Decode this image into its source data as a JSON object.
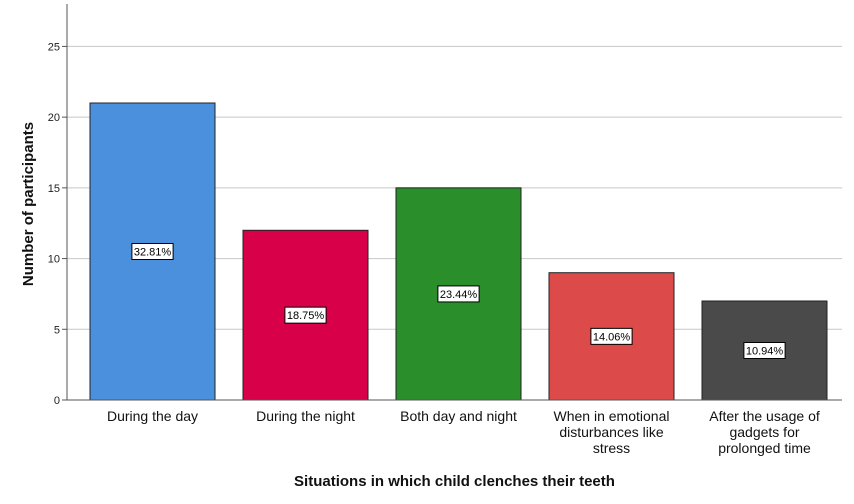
{
  "chart_data": {
    "type": "bar",
    "categories": [
      [
        "During the day"
      ],
      [
        "During the night"
      ],
      [
        "Both day and night"
      ],
      [
        "When in emotional",
        "disturbances like",
        "stress"
      ],
      [
        "After the usage of",
        "gadgets for",
        "prolonged time"
      ]
    ],
    "values": [
      21,
      12,
      15,
      9,
      7
    ],
    "data_labels": [
      "32.81%",
      "18.75%",
      "23.44%",
      "14.06%",
      "10.94%"
    ],
    "colors": [
      "#4a90dc",
      "#d80048",
      "#2a8f2a",
      "#dc4a4a",
      "#4a4a4a"
    ],
    "xlabel": "Situations in which child clenches their teeth",
    "ylabel": "Number of participants",
    "ylim": [
      0,
      28
    ],
    "yticks": [
      0,
      5,
      10,
      15,
      20,
      25
    ],
    "grid": true
  }
}
